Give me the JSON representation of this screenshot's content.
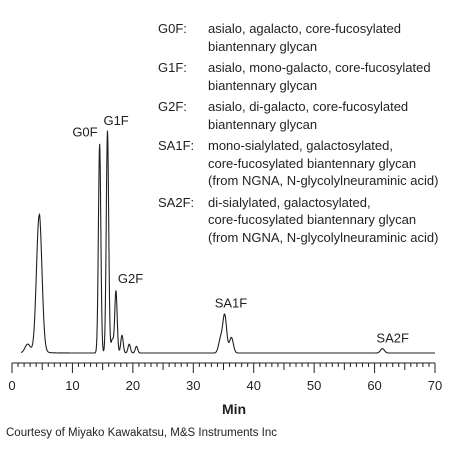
{
  "chart_data": {
    "type": "line",
    "xlabel": "Min",
    "xlim": [
      0,
      70
    ],
    "x_ticks": [
      0,
      10,
      20,
      30,
      40,
      50,
      60,
      70
    ],
    "peaks": [
      {
        "label": "",
        "x": 4.5,
        "height": 0.62
      },
      {
        "label": "G0F",
        "x": 14.5,
        "height": 0.94
      },
      {
        "label": "G1F",
        "x": 15.8,
        "height": 1.0
      },
      {
        "label": "G2F",
        "x": 17.2,
        "height": 0.28
      },
      {
        "label": "SA1F",
        "x": 35.2,
        "height": 0.17
      },
      {
        "label": "SA2F",
        "x": 61.3,
        "height": 0.02
      }
    ],
    "minor_peaks": [
      {
        "x": 2.6,
        "height": 0.04
      },
      {
        "x": 16.6,
        "height": 0.06
      },
      {
        "x": 18.2,
        "height": 0.08
      },
      {
        "x": 19.4,
        "height": 0.04
      },
      {
        "x": 20.6,
        "height": 0.03
      },
      {
        "x": 34.5,
        "height": 0.06
      },
      {
        "x": 36.3,
        "height": 0.07
      }
    ]
  },
  "legend": [
    {
      "key": "G0F:",
      "desc": "asialo, agalacto, core-fucosylated\nbiantennary glycan"
    },
    {
      "key": "G1F:",
      "desc": "asialo, mono-galacto, core-fucosylated\nbiantennary glycan"
    },
    {
      "key": "G2F:",
      "desc": "asialo, di-galacto, core-fucosylated\nbiantennary glycan"
    },
    {
      "key": "SA1F:",
      "desc": "mono-sialylated, galactosylated,\ncore-fucosylated biantennary glycan\n(from NGNA, N-glycolylneuraminic acid)"
    },
    {
      "key": "SA2F:",
      "desc": "di-sialylated, galactosylated,\ncore-fucosylated biantennary glycan\n(from NGNA, N-glycolylneuraminic acid)"
    }
  ],
  "credit": "Courtesy of Miyako Kawakatsu, M&S Instruments Inc",
  "colors": {
    "trace": "#231f20",
    "text": "#231f20"
  }
}
